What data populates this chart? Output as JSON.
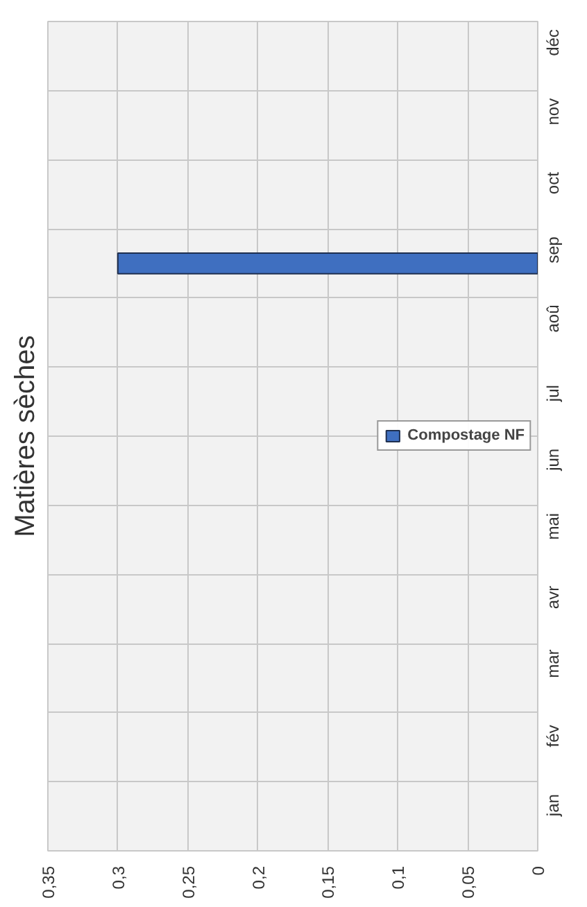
{
  "chart_data": {
    "type": "bar",
    "orientation": "horizontal",
    "title": "Matières sèches",
    "categories": [
      "déc",
      "nov",
      "oct",
      "sep",
      "aoû",
      "jul",
      "jun",
      "mai",
      "avr",
      "mar",
      "fév",
      "jan"
    ],
    "series": [
      {
        "name": "Compostage NF",
        "color": "#3f6fc0",
        "values": [
          null,
          null,
          null,
          0.3,
          null,
          null,
          null,
          null,
          null,
          null,
          null,
          null
        ]
      }
    ],
    "xlim": [
      0.35,
      0
    ],
    "xticks": [
      {
        "value": 0.35,
        "label": "0,35"
      },
      {
        "value": 0.3,
        "label": "0,3"
      },
      {
        "value": 0.25,
        "label": "0,25"
      },
      {
        "value": 0.2,
        "label": "0,2"
      },
      {
        "value": 0.15,
        "label": "0,15"
      },
      {
        "value": 0.1,
        "label": "0,1"
      },
      {
        "value": 0.05,
        "label": "0,05"
      },
      0
    ],
    "grid": true,
    "legend": "right"
  }
}
